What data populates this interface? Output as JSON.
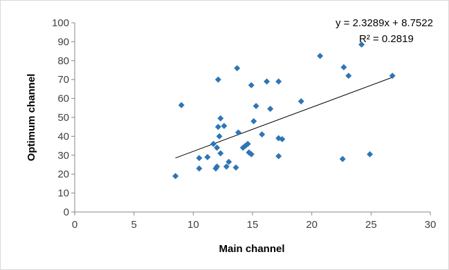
{
  "chart_data": {
    "type": "scatter",
    "title": "",
    "xlabel": "Main channel",
    "ylabel": "Optimum channel",
    "xlim": [
      0,
      30
    ],
    "ylim": [
      0,
      100
    ],
    "x_ticks": [
      "0",
      "5",
      "10",
      "15",
      "20",
      "25",
      "30"
    ],
    "y_ticks": [
      "0",
      "10",
      "20",
      "30",
      "40",
      "50",
      "60",
      "70",
      "80",
      "90",
      "100"
    ],
    "x_tick_values": [
      0,
      5,
      10,
      15,
      20,
      25,
      30
    ],
    "y_tick_values": [
      0,
      10,
      20,
      30,
      40,
      50,
      60,
      70,
      80,
      90,
      100
    ],
    "grid": false,
    "legend": "none",
    "marker": "diamond",
    "marker_color": "#2e75b6",
    "trendline_color": "#000000",
    "series": [
      {
        "x": [
          8.5,
          9.0,
          10.5,
          10.5,
          11.2,
          11.7,
          11.9,
          12.0,
          12.0,
          12.1,
          12.1,
          12.2,
          12.3,
          12.3,
          12.6,
          12.8,
          13.0,
          13.6,
          13.7,
          13.8,
          14.2,
          14.4,
          14.6,
          14.7,
          14.9,
          14.9,
          15.1,
          15.3,
          15.8,
          16.2,
          16.5,
          17.2,
          17.2,
          17.2,
          17.5,
          19.1,
          20.7,
          22.6,
          22.7,
          23.1,
          24.2,
          24.9,
          26.8
        ],
        "y": [
          19,
          56.5,
          23,
          28.5,
          29,
          36,
          23,
          24,
          34,
          70,
          45,
          40,
          31,
          49.5,
          45.5,
          24,
          26.5,
          23.5,
          76,
          42,
          34,
          35,
          36,
          31.5,
          30.5,
          67,
          48,
          56,
          41,
          69,
          54.5,
          69,
          29.5,
          39,
          38.5,
          58.5,
          82.5,
          28,
          76.5,
          72,
          88.5,
          30.5,
          72
        ]
      }
    ],
    "trendline": {
      "slope": 2.3289,
      "intercept": 8.7522,
      "x_range": [
        8.5,
        26.8
      ]
    },
    "annotations": {
      "equation": "y = 2.3289x + 8.7522",
      "r2": "R² = 0.2819"
    }
  }
}
